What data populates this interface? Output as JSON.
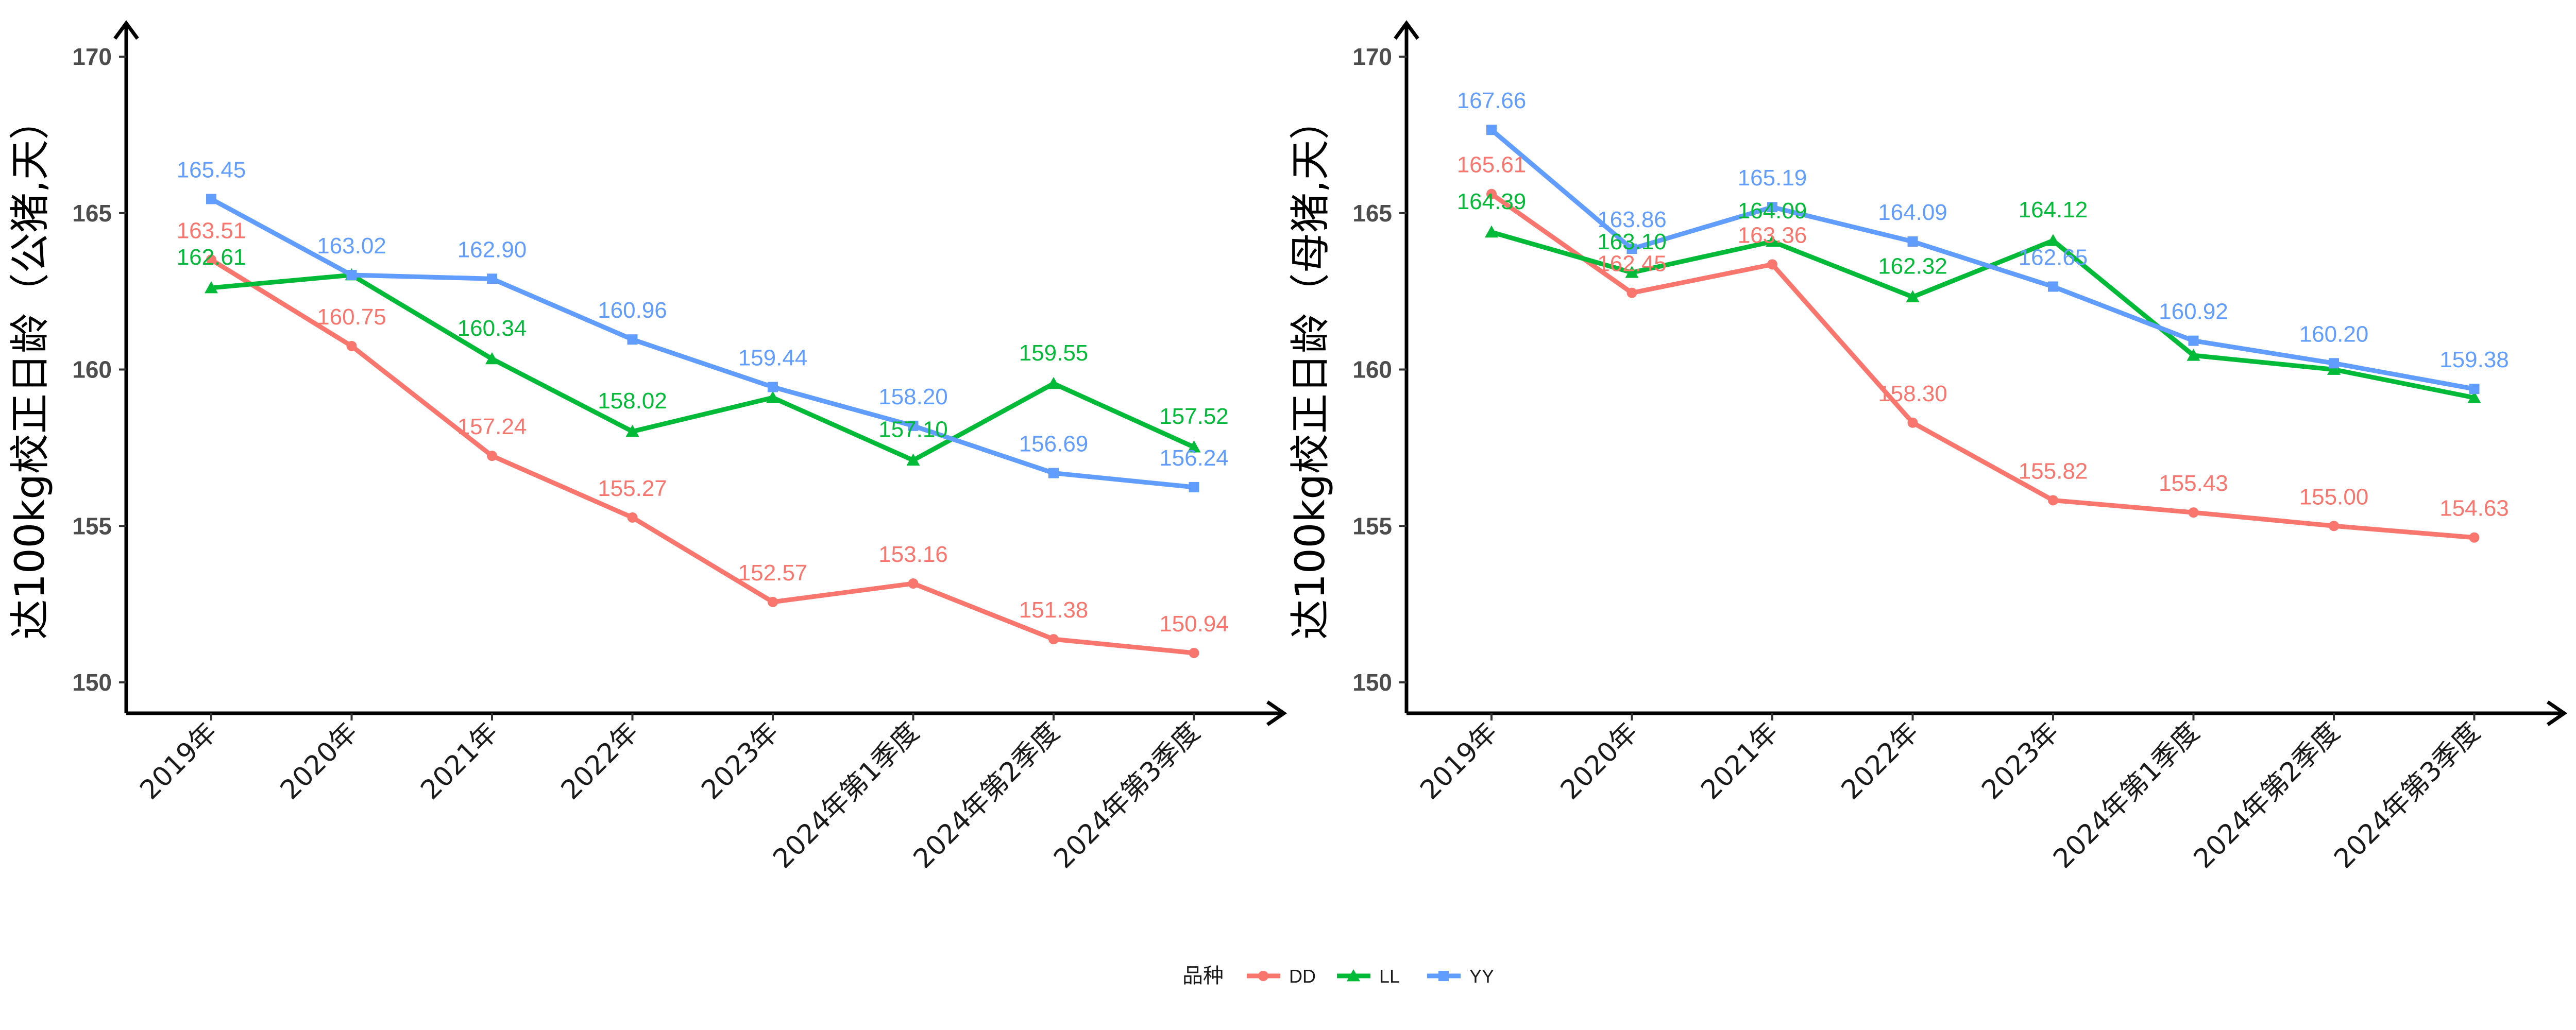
{
  "legend": {
    "title": "品种",
    "position": "bottom"
  },
  "chart_data": [
    {
      "type": "line",
      "title": "",
      "xlabel": "",
      "ylabel": "达100kg校正日龄（公猪,天）",
      "ylim": [
        150,
        170
      ],
      "yticks": [
        150,
        155,
        160,
        165,
        170
      ],
      "grid": false,
      "categories": [
        "2019年",
        "2020年",
        "2021年",
        "2022年",
        "2023年",
        "2024年第1季度",
        "2024年第2季度",
        "2024年第3季度"
      ],
      "series": [
        {
          "name": "DD",
          "color": "#F8766D",
          "marker": "circle",
          "values": [
            163.51,
            160.75,
            157.24,
            155.27,
            152.57,
            153.16,
            151.38,
            150.94
          ]
        },
        {
          "name": "LL",
          "color": "#00BA38",
          "marker": "triangle",
          "values": [
            162.61,
            163.02,
            160.34,
            158.02,
            159.1,
            157.1,
            159.55,
            157.52
          ]
        },
        {
          "name": "YY",
          "color": "#619CFF",
          "marker": "square",
          "values": [
            165.45,
            163.02,
            162.9,
            160.96,
            159.44,
            158.2,
            156.69,
            156.24
          ]
        }
      ],
      "data_labels": {
        "DD": [
          "163.51",
          "160.75",
          "157.24",
          "155.27",
          "152.57",
          "153.16",
          "151.38",
          "150.94"
        ],
        "LL": [
          "162.61",
          "",
          "160.34",
          "158.02",
          "",
          "157.10",
          "159.55",
          "157.52"
        ],
        "YY": [
          "165.45",
          "163.02",
          "162.90",
          "160.96",
          "159.44",
          "158.20",
          "156.69",
          "156.24"
        ]
      }
    },
    {
      "type": "line",
      "title": "",
      "xlabel": "",
      "ylabel": "达100kg校正日龄（母猪,天）",
      "ylim": [
        150,
        170
      ],
      "yticks": [
        150,
        155,
        160,
        165,
        170
      ],
      "grid": false,
      "categories": [
        "2019年",
        "2020年",
        "2021年",
        "2022年",
        "2023年",
        "2024年第1季度",
        "2024年第2季度",
        "2024年第3季度"
      ],
      "series": [
        {
          "name": "DD",
          "color": "#F8766D",
          "marker": "circle",
          "values": [
            165.61,
            162.45,
            163.36,
            158.3,
            155.82,
            155.43,
            155.0,
            154.63
          ]
        },
        {
          "name": "LL",
          "color": "#00BA38",
          "marker": "triangle",
          "values": [
            164.39,
            163.1,
            164.09,
            162.32,
            164.12,
            160.45,
            160.0,
            159.1
          ]
        },
        {
          "name": "YY",
          "color": "#619CFF",
          "marker": "square",
          "values": [
            167.66,
            163.86,
            165.19,
            164.09,
            162.65,
            160.92,
            160.2,
            159.38
          ]
        }
      ],
      "data_labels": {
        "DD": [
          "165.61",
          "162.45",
          "163.36",
          "158.30",
          "155.82",
          "155.43",
          "155.00",
          "154.63"
        ],
        "LL": [
          "164.39",
          "163.10",
          "164.09",
          "162.32",
          "164.12",
          "",
          "",
          ""
        ],
        "YY": [
          "167.66",
          "163.86",
          "165.19",
          "164.09",
          "162.65",
          "160.92",
          "160.20",
          "159.38"
        ]
      }
    }
  ]
}
